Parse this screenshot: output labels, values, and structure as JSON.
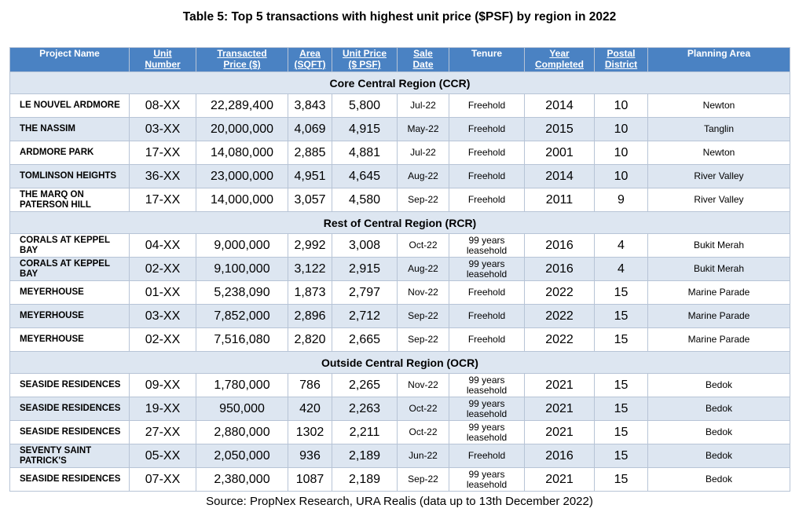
{
  "title": "Table 5: Top 5 transactions with highest unit price ($PSF) by region in 2022",
  "headers": [
    {
      "line1": "Project Name",
      "line2": ""
    },
    {
      "line1": "Unit",
      "line2": "Number"
    },
    {
      "line1": "Transacted",
      "line2": "Price ($)"
    },
    {
      "line1": "Area",
      "line2": "(SQFT)"
    },
    {
      "line1": "Unit Price",
      "line2": "($ PSF)"
    },
    {
      "line1": "Sale",
      "line2": "Date"
    },
    {
      "line1": "Tenure",
      "line2": ""
    },
    {
      "line1": "Year",
      "line2": "Completed"
    },
    {
      "line1": "Postal",
      "line2": "District"
    },
    {
      "line1": "Planning Area",
      "line2": ""
    }
  ],
  "regions": [
    {
      "name": "Core Central Region (CCR)",
      "rows": [
        {
          "project": "LE NOUVEL ARDMORE",
          "unit": "08-XX",
          "price": "22,289,400",
          "area": "3,843",
          "psf": "5,800",
          "date": "Jul-22",
          "tenure": "Freehold",
          "year": "2014",
          "district": "10",
          "planning": "Newton"
        },
        {
          "project": "THE NASSIM",
          "unit": "03-XX",
          "price": "20,000,000",
          "area": "4,069",
          "psf": "4,915",
          "date": "May-22",
          "tenure": "Freehold",
          "year": "2015",
          "district": "10",
          "planning": "Tanglin"
        },
        {
          "project": "ARDMORE PARK",
          "unit": "17-XX",
          "price": "14,080,000",
          "area": "2,885",
          "psf": "4,881",
          "date": "Jul-22",
          "tenure": "Freehold",
          "year": "2001",
          "district": "10",
          "planning": "Newton"
        },
        {
          "project": "TOMLINSON HEIGHTS",
          "unit": "36-XX",
          "price": "23,000,000",
          "area": "4,951",
          "psf": "4,645",
          "date": "Aug-22",
          "tenure": "Freehold",
          "year": "2014",
          "district": "10",
          "planning": "River Valley"
        },
        {
          "project": "THE MARQ ON PATERSON HILL",
          "unit": "17-XX",
          "price": "14,000,000",
          "area": "3,057",
          "psf": "4,580",
          "date": "Sep-22",
          "tenure": "Freehold",
          "year": "2011",
          "district": "9",
          "planning": "River Valley"
        }
      ]
    },
    {
      "name": "Rest of Central Region (RCR)",
      "rows": [
        {
          "project": "CORALS AT KEPPEL BAY",
          "unit": "04-XX",
          "price": "9,000,000",
          "area": "2,992",
          "psf": "3,008",
          "date": "Oct-22",
          "tenure": "99 years leasehold",
          "year": "2016",
          "district": "4",
          "planning": "Bukit Merah"
        },
        {
          "project": "CORALS AT KEPPEL BAY",
          "unit": "02-XX",
          "price": "9,100,000",
          "area": "3,122",
          "psf": "2,915",
          "date": "Aug-22",
          "tenure": "99 years leasehold",
          "year": "2016",
          "district": "4",
          "planning": "Bukit Merah"
        },
        {
          "project": "MEYERHOUSE",
          "unit": "01-XX",
          "price": "5,238,090",
          "area": "1,873",
          "psf": "2,797",
          "date": "Nov-22",
          "tenure": "Freehold",
          "year": "2022",
          "district": "15",
          "planning": "Marine Parade"
        },
        {
          "project": "MEYERHOUSE",
          "unit": "03-XX",
          "price": "7,852,000",
          "area": "2,896",
          "psf": "2,712",
          "date": "Sep-22",
          "tenure": "Freehold",
          "year": "2022",
          "district": "15",
          "planning": "Marine Parade"
        },
        {
          "project": "MEYERHOUSE",
          "unit": "02-XX",
          "price": "7,516,080",
          "area": "2,820",
          "psf": "2,665",
          "date": "Sep-22",
          "tenure": "Freehold",
          "year": "2022",
          "district": "15",
          "planning": "Marine Parade"
        }
      ]
    },
    {
      "name": "Outside Central Region (OCR)",
      "rows": [
        {
          "project": "SEASIDE RESIDENCES",
          "unit": "09-XX",
          "price": "1,780,000",
          "area": "786",
          "psf": "2,265",
          "date": "Nov-22",
          "tenure": "99 years leasehold",
          "year": "2021",
          "district": "15",
          "planning": "Bedok"
        },
        {
          "project": "SEASIDE RESIDENCES",
          "unit": "19-XX",
          "price": "950,000",
          "area": "420",
          "psf": "2,263",
          "date": "Oct-22",
          "tenure": "99 years leasehold",
          "year": "2021",
          "district": "15",
          "planning": "Bedok"
        },
        {
          "project": "SEASIDE RESIDENCES",
          "unit": "27-XX",
          "price": "2,880,000",
          "area": "1302",
          "psf": "2,211",
          "date": "Oct-22",
          "tenure": "99 years leasehold",
          "year": "2021",
          "district": "15",
          "planning": "Bedok"
        },
        {
          "project": "SEVENTY SAINT PATRICK'S",
          "unit": "05-XX",
          "price": "2,050,000",
          "area": "936",
          "psf": "2,189",
          "date": "Jun-22",
          "tenure": "Freehold",
          "year": "2016",
          "district": "15",
          "planning": "Bedok"
        },
        {
          "project": "SEASIDE RESIDENCES",
          "unit": "07-XX",
          "price": "2,380,000",
          "area": "1087",
          "psf": "2,189",
          "date": "Sep-22",
          "tenure": "99 years leasehold",
          "year": "2021",
          "district": "15",
          "planning": "Bedok"
        }
      ]
    }
  ],
  "source": "Source: PropNex Research, URA Realis (data up to 13th December 2022)"
}
